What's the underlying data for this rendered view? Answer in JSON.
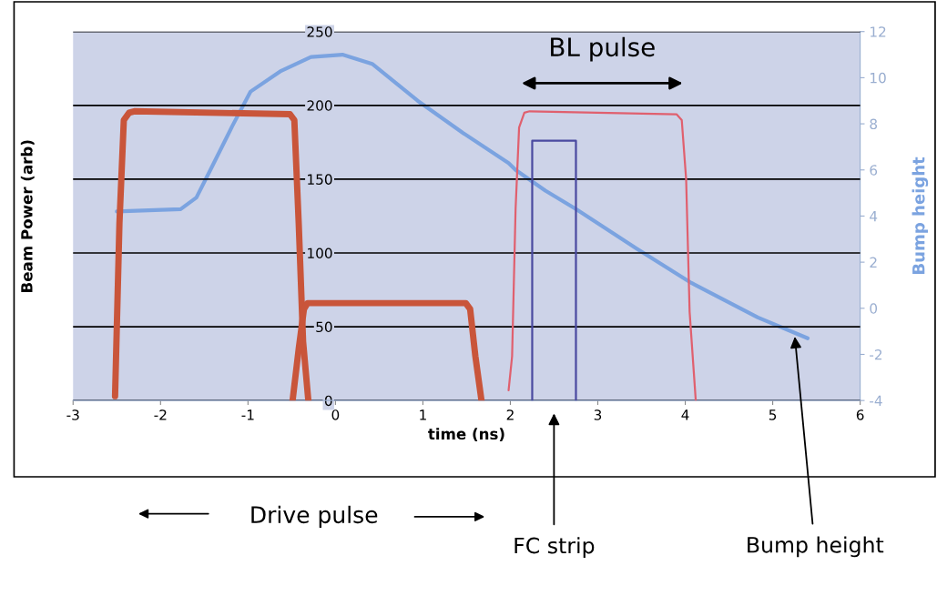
{
  "chart_data": {
    "type": "line",
    "xlabel": "time (ns)",
    "ylabel": "Beam Power (arb)",
    "y2label": "Bump height",
    "xlim": [
      -3,
      6
    ],
    "xticks": [
      -3,
      -2,
      -1,
      0,
      1,
      2,
      3,
      4,
      5,
      6
    ],
    "ylim": [
      0,
      250
    ],
    "yticks": [
      0,
      50,
      100,
      150,
      200,
      250
    ],
    "y2lim": [
      -4,
      12
    ],
    "y2ticks": [
      -4,
      -2,
      0,
      2,
      4,
      6,
      8,
      10,
      12
    ],
    "grid": "y",
    "legend": false,
    "marker": "none",
    "line_style": "solid",
    "series": [
      {
        "color": "#c9553a",
        "x": [
          -2.52,
          -2.47,
          -2.42,
          -2.36,
          -2.3,
          -0.52,
          -0.47,
          -0.42,
          -0.37,
          -0.31
        ],
        "values": [
          3,
          120,
          190,
          195,
          196,
          194,
          190,
          120,
          40,
          0
        ]
      },
      {
        "color": "#c9553a",
        "x": [
          -0.49,
          -0.42,
          -0.36,
          -0.32,
          1.49,
          1.54,
          1.6,
          1.67
        ],
        "values": [
          0,
          35,
          62,
          66,
          66,
          62,
          30,
          0
        ]
      },
      {
        "color": "#e0606e",
        "x": [
          1.98,
          2.02,
          2.06,
          2.1,
          2.16,
          2.22,
          3.9,
          3.96,
          4.01,
          4.05,
          4.12
        ],
        "values": [
          7,
          30,
          130,
          185,
          195,
          196,
          194,
          190,
          150,
          60,
          0
        ]
      },
      {
        "color": "#4a4aa0",
        "x": [
          2.25,
          2.25,
          2.75,
          2.75
        ],
        "values": [
          0,
          176,
          176,
          0
        ]
      },
      {
        "color": "#7ba3e0",
        "axis": "y2",
        "x": [
          -2.5,
          -1.77,
          -1.59,
          -1.43,
          -1.18,
          -0.97,
          -0.62,
          -0.28,
          0.08,
          0.42,
          0.94,
          1.46,
          1.98,
          2.06,
          2.4,
          2.75,
          3.44,
          4.07,
          4.83,
          5.4
        ],
        "values": [
          4.2,
          4.3,
          4.8,
          6.0,
          7.9,
          9.4,
          10.3,
          10.9,
          11.0,
          10.6,
          9.0,
          7.6,
          6.3,
          6.0,
          5.1,
          4.3,
          2.6,
          1.1,
          -0.4,
          -1.3
        ]
      }
    ],
    "annotations": [
      "BL pulse",
      "Drive pulse",
      "FC strip",
      {
        "text": "Bump height",
        "x": 5.25,
        "y": 45
      }
    ]
  }
}
